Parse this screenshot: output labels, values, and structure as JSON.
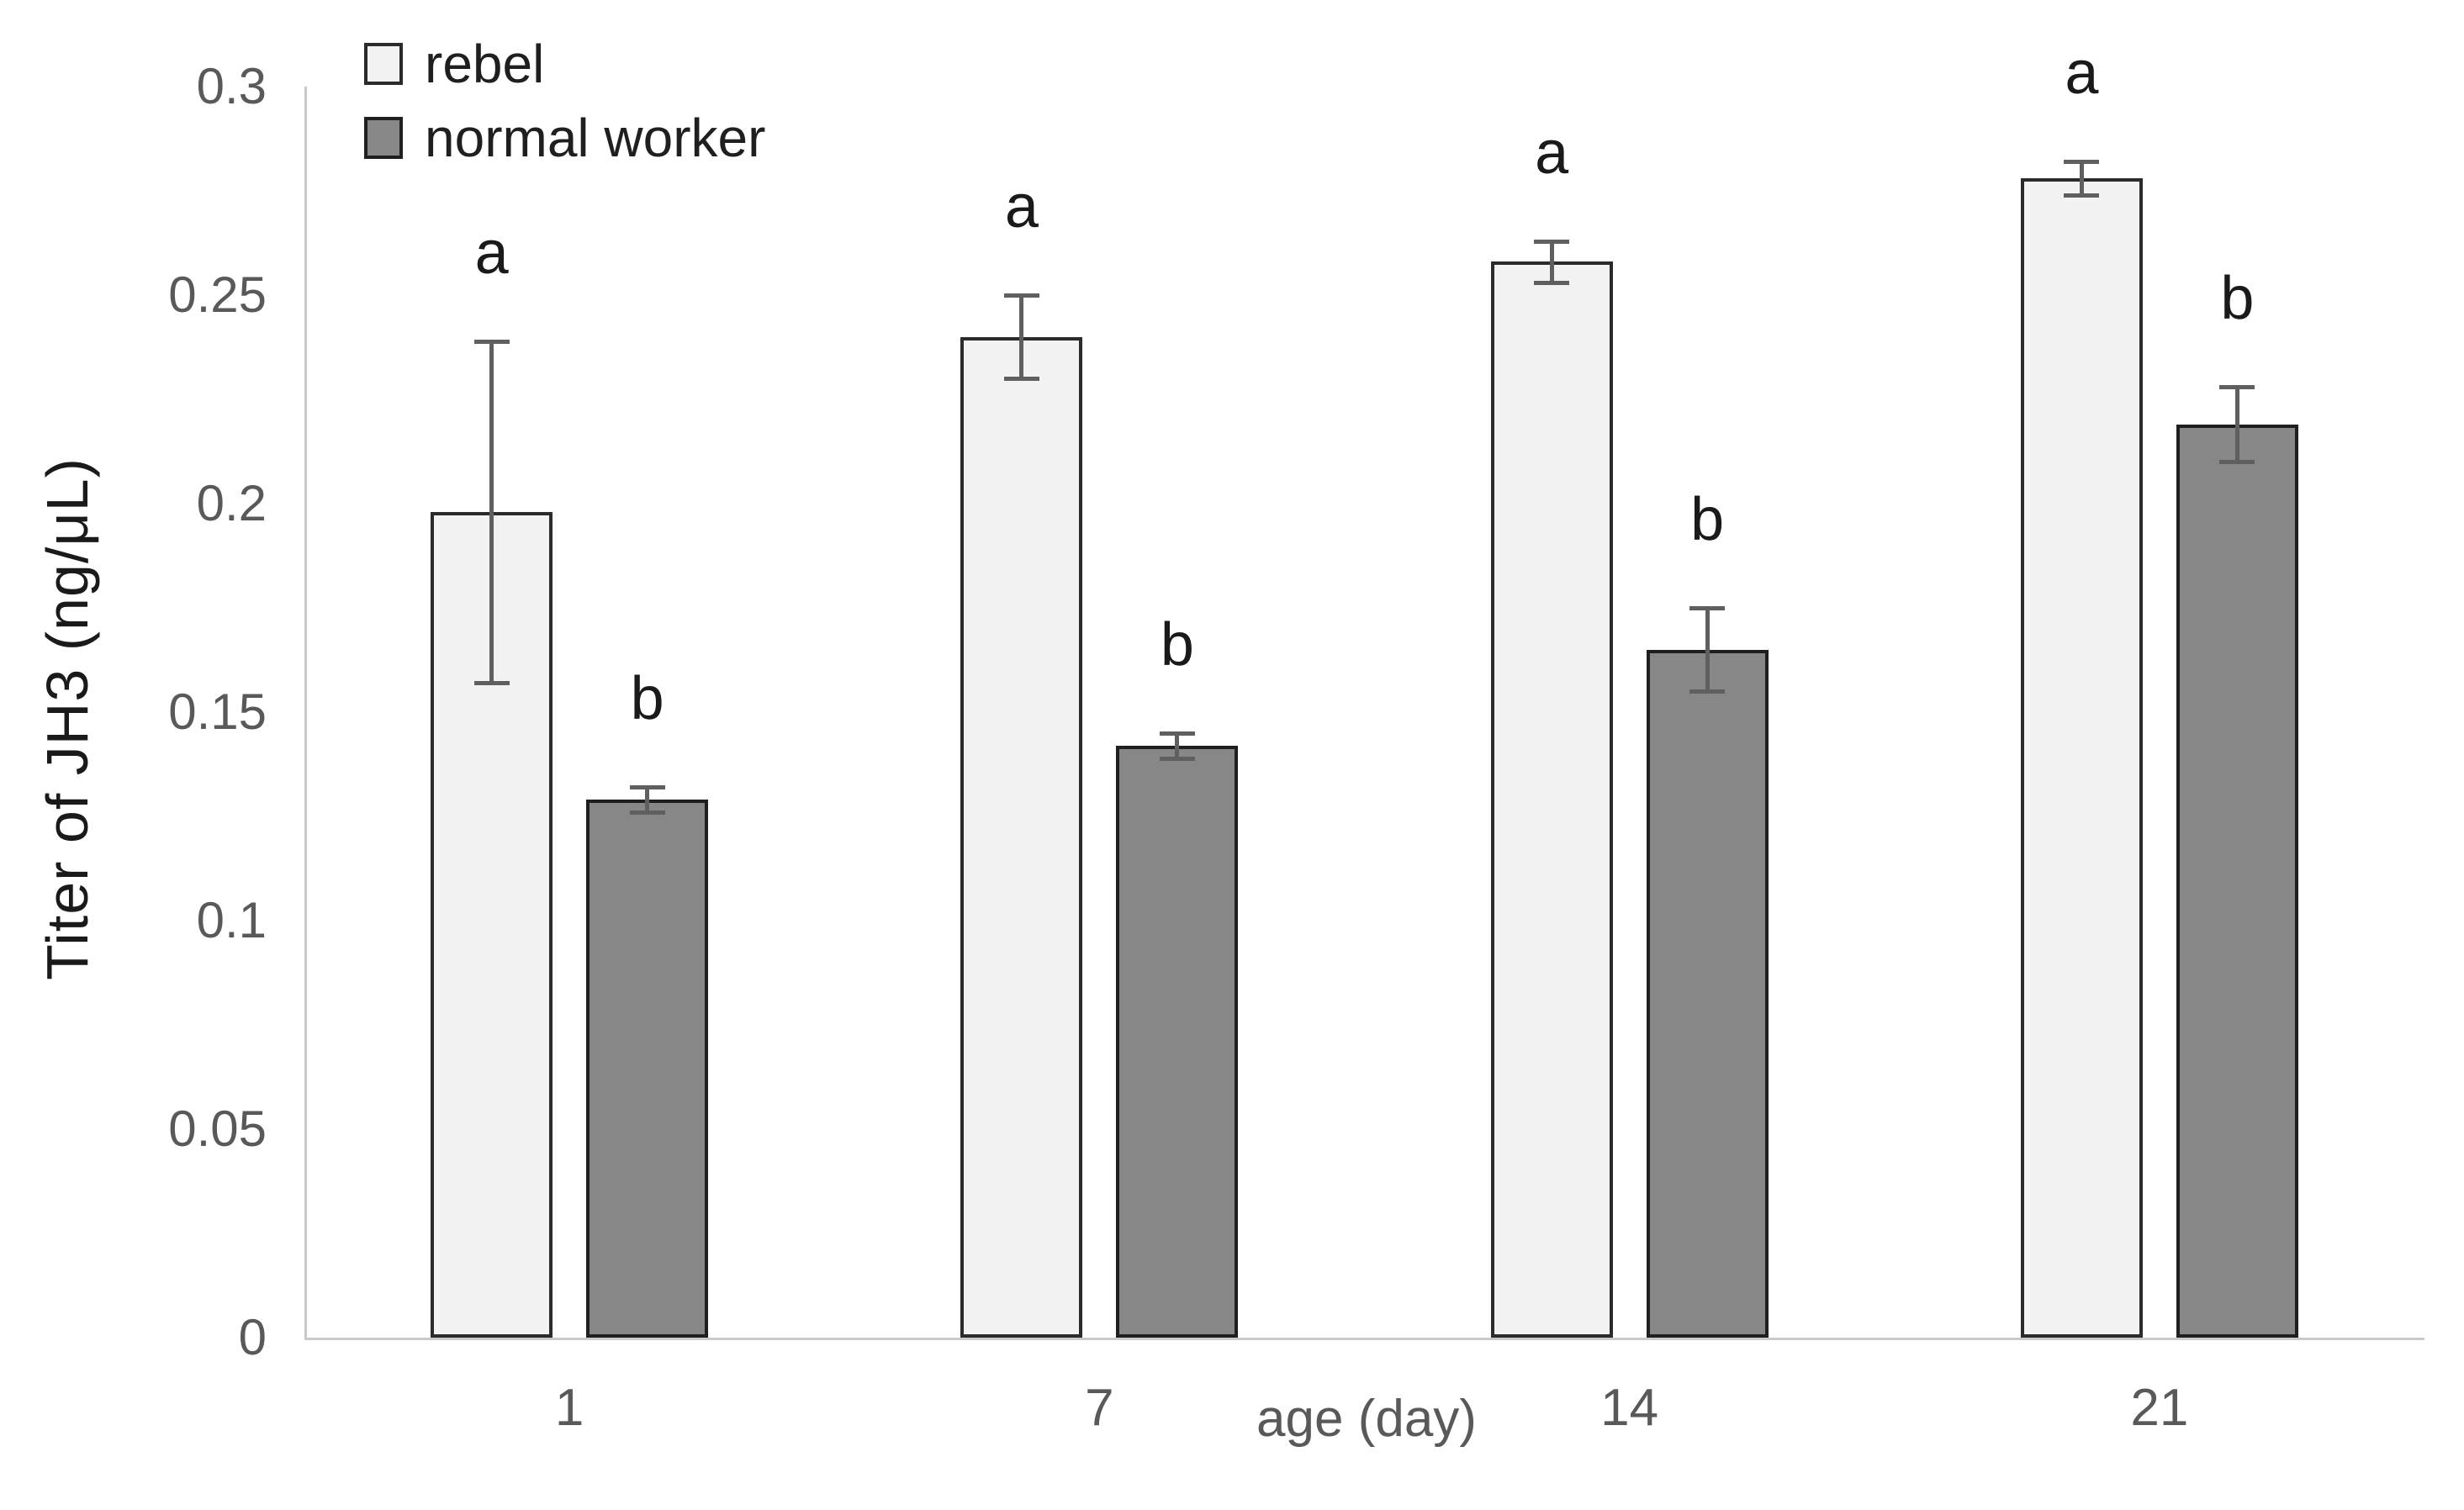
{
  "chart_data": {
    "type": "bar",
    "title": "",
    "xlabel": "age (day)",
    "ylabel": "Titer of JH3 (ng/μL)",
    "categories": [
      "1",
      "7",
      "14",
      "21"
    ],
    "series": [
      {
        "name": "rebel",
        "values": [
          0.198,
          0.24,
          0.258,
          0.278
        ],
        "errors": [
          0.041,
          0.01,
          0.005,
          0.004
        ],
        "sig_letters": [
          "a",
          "a",
          "a",
          "a"
        ],
        "fill": "#f2f2f2",
        "border": "#2b2b2b"
      },
      {
        "name": "normal worker",
        "values": [
          0.129,
          0.142,
          0.165,
          0.219
        ],
        "errors": [
          0.003,
          0.003,
          0.01,
          0.009
        ],
        "sig_letters": [
          "b",
          "b",
          "b",
          "b"
        ],
        "fill": "#878787",
        "border": "#1f1f1f"
      }
    ],
    "ylim": [
      0,
      0.3
    ],
    "yticks": [
      0,
      0.05,
      0.1,
      0.15,
      0.2,
      0.25,
      0.3
    ],
    "ytick_labels": [
      "0",
      "0.05",
      "0.1",
      "0.15",
      "0.2",
      "0.25",
      "0.3"
    ],
    "grid": false,
    "legend_position": "top-left",
    "error_bar_color": "#5f5f5f",
    "axis_line_color": "#c9c9c9",
    "tick_label_color": "#595959",
    "sig_letter_color": "#1a1a1a"
  }
}
